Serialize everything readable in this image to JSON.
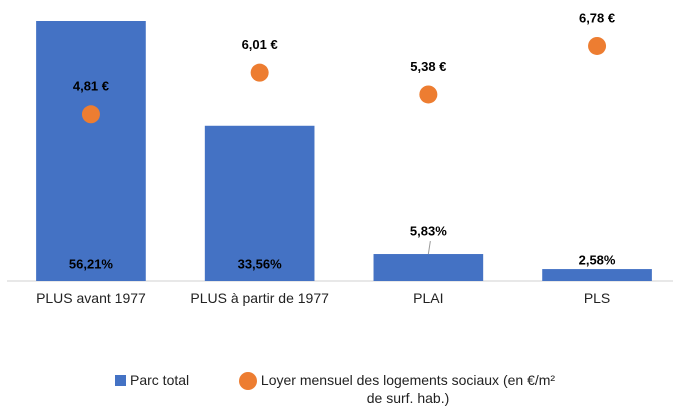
{
  "chart_data": {
    "type": "bar",
    "categories": [
      "PLUS avant 1977",
      "PLUS à partir de 1977",
      "PLAI",
      "PLS"
    ],
    "series": [
      {
        "name": "Parc total",
        "type": "bar",
        "color": "#4472c4",
        "values": [
          56.21,
          33.56,
          5.83,
          2.58
        ],
        "value_labels": [
          "56,21%",
          "33,56%",
          "5,83%",
          "2,58%"
        ]
      },
      {
        "name": "Loyer mensuel des logements sociaux (en €/m² de surf. hab.)",
        "type": "scatter",
        "axis": "y2",
        "color": "#ed7d31",
        "values": [
          4.81,
          6.01,
          5.38,
          6.78
        ],
        "value_labels": [
          "4,81 €",
          "6,01 €",
          "5,38 €",
          "6,78 €"
        ]
      }
    ],
    "ylim": [
      0,
      56.21
    ],
    "y2lim": [
      0,
      7.5
    ],
    "legend": "bottom"
  }
}
